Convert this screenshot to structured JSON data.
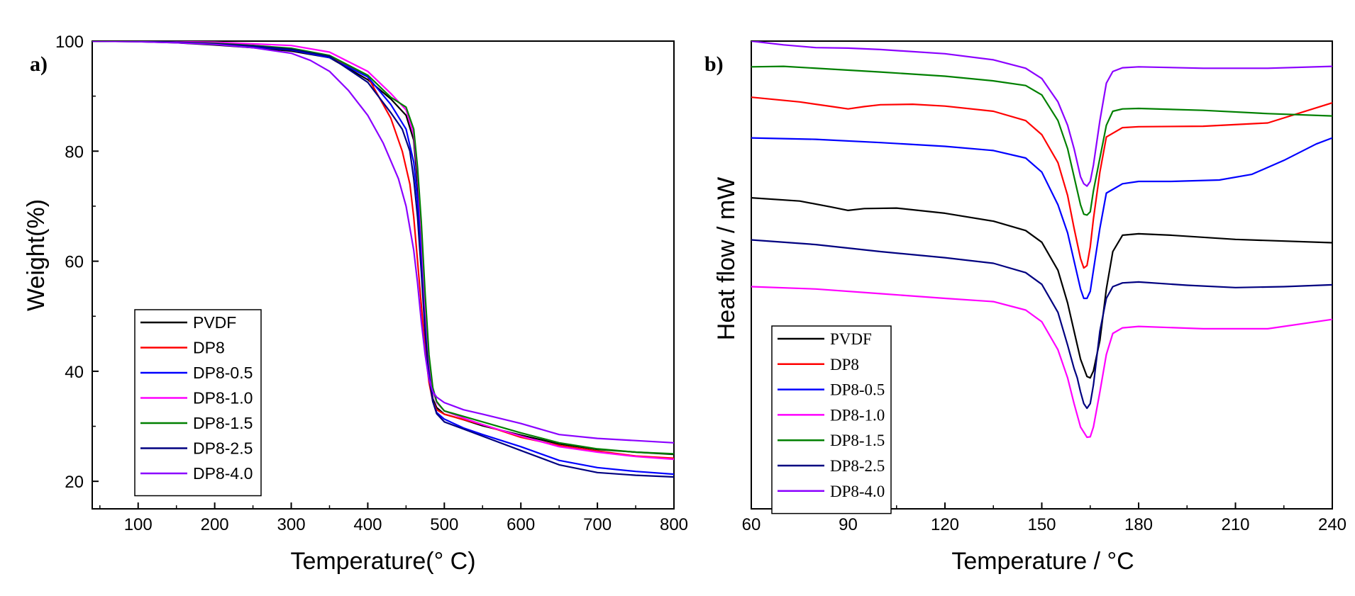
{
  "chart_data": [
    {
      "panel_label": "a)",
      "type": "line",
      "xlabel": "Temperature(° C)",
      "ylabel": "Weight(%)",
      "xlim": [
        40,
        800
      ],
      "ylim": [
        15,
        100
      ],
      "xticks": [
        100,
        200,
        300,
        400,
        500,
        600,
        700,
        800
      ],
      "yticks": [
        20,
        40,
        60,
        80,
        100
      ],
      "legend_position": "bottom-left",
      "series": [
        {
          "name": "PVDF",
          "color": "#000000",
          "x": [
            40,
            100,
            150,
            200,
            250,
            300,
            350,
            400,
            430,
            450,
            460,
            465,
            470,
            475,
            480,
            485,
            490,
            500,
            525,
            550,
            600,
            650,
            700,
            750,
            800
          ],
          "y": [
            100,
            99.9,
            99.7,
            99.3,
            98.8,
            98.2,
            97,
            93,
            89.5,
            86.5,
            82,
            74,
            63,
            50,
            40,
            35,
            33.4,
            32.2,
            31.2,
            30.1,
            28.4,
            26.8,
            25.8,
            25.3,
            24.9
          ]
        },
        {
          "name": "DP8",
          "color": "#ff0000",
          "x": [
            40,
            100,
            150,
            200,
            250,
            300,
            350,
            400,
            430,
            445,
            455,
            460,
            465,
            470,
            475,
            480,
            485,
            490,
            500,
            525,
            550,
            600,
            650,
            700,
            750,
            800
          ],
          "y": [
            100,
            99.95,
            99.8,
            99.6,
            99.2,
            98.6,
            97.2,
            93.5,
            86,
            80,
            74,
            68,
            60,
            52,
            44,
            38,
            34.5,
            33,
            32.2,
            31.2,
            30.3,
            28,
            26.5,
            25.5,
            24.6,
            24.2
          ]
        },
        {
          "name": "DP8-0.5",
          "color": "#0000ff",
          "x": [
            40,
            100,
            150,
            200,
            250,
            300,
            350,
            400,
            430,
            450,
            460,
            465,
            470,
            475,
            480,
            485,
            490,
            500,
            525,
            550,
            600,
            650,
            700,
            750,
            800
          ],
          "y": [
            100,
            99.95,
            99.8,
            99.5,
            99,
            98.4,
            97,
            93.5,
            88.5,
            84,
            78,
            71,
            61,
            50,
            40,
            34.5,
            32.5,
            31.3,
            29.7,
            28.5,
            26.3,
            23.8,
            22.5,
            21.8,
            21.3
          ]
        },
        {
          "name": "DP8-1.0",
          "color": "#ff00ff",
          "x": [
            40,
            100,
            150,
            200,
            250,
            300,
            350,
            400,
            430,
            450,
            460,
            465,
            470,
            475,
            480,
            485,
            490,
            500,
            525,
            550,
            600,
            650,
            700,
            750,
            800
          ],
          "y": [
            100,
            100,
            99.9,
            99.8,
            99.5,
            99.2,
            98,
            94.5,
            90.5,
            87.5,
            83,
            76,
            65,
            52,
            42,
            36.5,
            34.3,
            32.8,
            31.5,
            30.3,
            28.2,
            26.3,
            25.3,
            24.5,
            24
          ]
        },
        {
          "name": "DP8-1.5",
          "color": "#008000",
          "x": [
            40,
            100,
            150,
            200,
            250,
            300,
            350,
            400,
            430,
            450,
            460,
            465,
            470,
            475,
            480,
            485,
            490,
            500,
            525,
            550,
            600,
            650,
            700,
            750,
            800
          ],
          "y": [
            100,
            99.95,
            99.8,
            99.6,
            99.2,
            98.7,
            97.4,
            93.8,
            89.8,
            88,
            84,
            77,
            67,
            54,
            43,
            37,
            34.5,
            32.8,
            31.8,
            30.8,
            28.8,
            27,
            25.9,
            25.3,
            25
          ]
        },
        {
          "name": "DP8-2.5",
          "color": "#000080",
          "x": [
            40,
            100,
            150,
            200,
            250,
            300,
            350,
            400,
            430,
            445,
            455,
            460,
            465,
            470,
            475,
            480,
            485,
            490,
            500,
            525,
            550,
            600,
            650,
            700,
            750,
            800
          ],
          "y": [
            100,
            99.95,
            99.8,
            99.5,
            99.1,
            98.5,
            97.2,
            92.5,
            87,
            84,
            80,
            75,
            68,
            58,
            47,
            39,
            34.5,
            32.3,
            30.8,
            29.5,
            28.2,
            25.6,
            23,
            21.6,
            21.1,
            20.8
          ]
        },
        {
          "name": "DP8-4.0",
          "color": "#8b00ff",
          "x": [
            40,
            100,
            150,
            200,
            250,
            300,
            325,
            350,
            375,
            400,
            420,
            440,
            450,
            460,
            465,
            470,
            475,
            480,
            485,
            490,
            500,
            525,
            550,
            600,
            650,
            700,
            750,
            800
          ],
          "y": [
            100,
            99.9,
            99.7,
            99.4,
            98.8,
            97.8,
            96.5,
            94.5,
            91,
            86.5,
            81.5,
            75,
            70,
            62,
            56,
            49,
            43,
            38.5,
            36.3,
            35.3,
            34.3,
            33,
            32.2,
            30.5,
            28.5,
            27.8,
            27.4,
            27
          ]
        }
      ]
    },
    {
      "panel_label": "b)",
      "type": "line",
      "xlabel": "Temperature / °C",
      "ylabel": "Heat flow / mW",
      "xlim": [
        60,
        240
      ],
      "ylim": [
        0,
        100
      ],
      "xticks": [
        60,
        90,
        120,
        150,
        180,
        210,
        240
      ],
      "legend_position": "bottom-left",
      "series": [
        {
          "name": "PVDF",
          "color": "#000000",
          "x": [
            60,
            75,
            85,
            90,
            95,
            105,
            120,
            135,
            145,
            150,
            155,
            158,
            160,
            162,
            164,
            165,
            166,
            168,
            170,
            172,
            175,
            180,
            190,
            210,
            240
          ],
          "y": [
            66.5,
            65.8,
            64.5,
            63.8,
            64.2,
            64.3,
            63.2,
            61.5,
            59.5,
            57,
            51,
            44,
            38,
            32,
            28.3,
            28,
            29.5,
            36,
            47,
            55,
            58.5,
            58.8,
            58.5,
            57.6,
            56.9
          ]
        },
        {
          "name": "DP8",
          "color": "#ff0000",
          "x": [
            60,
            75,
            85,
            90,
            95,
            100,
            110,
            120,
            135,
            145,
            150,
            155,
            158,
            160,
            162,
            163,
            164,
            165,
            166,
            168,
            170,
            175,
            180,
            200,
            220,
            240
          ],
          "y": [
            88,
            87,
            86,
            85.5,
            86,
            86.4,
            86.5,
            86.1,
            85,
            83,
            80,
            74,
            67,
            60,
            53.5,
            51.5,
            52,
            56,
            62,
            72,
            79.5,
            81.5,
            81.7,
            81.8,
            82.5,
            86.8
          ]
        },
        {
          "name": "DP8-0.5",
          "color": "#0000ff",
          "x": [
            60,
            80,
            100,
            120,
            135,
            145,
            150,
            155,
            158,
            160,
            162,
            163,
            164,
            165,
            166,
            168,
            170,
            175,
            180,
            190,
            205,
            215,
            225,
            235,
            240
          ],
          "y": [
            79.3,
            79,
            78.3,
            77.5,
            76.6,
            75,
            72,
            65,
            59,
            53,
            47,
            45,
            45,
            46.5,
            51,
            60,
            67.5,
            69.5,
            70,
            70,
            70.3,
            71.5,
            74.5,
            78,
            79.3
          ]
        },
        {
          "name": "DP8-1.0",
          "color": "#ff00ff",
          "x": [
            60,
            80,
            100,
            120,
            135,
            145,
            150,
            155,
            158,
            160,
            162,
            164,
            165,
            166,
            168,
            170,
            172,
            175,
            180,
            200,
            220,
            240
          ],
          "y": [
            47.5,
            47,
            46,
            45,
            44.3,
            42.5,
            40,
            34,
            28,
            22.5,
            17.5,
            15.3,
            15.4,
            17.5,
            25,
            33,
            37.5,
            38.7,
            39,
            38.5,
            38.5,
            40.5
          ]
        },
        {
          "name": "DP8-1.5",
          "color": "#008000",
          "x": [
            60,
            70,
            100,
            120,
            135,
            145,
            150,
            155,
            158,
            160,
            162,
            163,
            164,
            165,
            166,
            168,
            170,
            172,
            175,
            180,
            200,
            220,
            240
          ],
          "y": [
            94.5,
            94.6,
            93.4,
            92.5,
            91.5,
            90.5,
            88.5,
            83,
            77,
            71,
            65,
            63,
            62.8,
            63.5,
            68,
            75,
            82,
            85,
            85.5,
            85.6,
            85.2,
            84.5,
            84
          ]
        },
        {
          "name": "DP8-2.5",
          "color": "#000080",
          "x": [
            60,
            80,
            100,
            120,
            135,
            145,
            150,
            155,
            158,
            160,
            161,
            162,
            163,
            164,
            165,
            166,
            168,
            170,
            172,
            175,
            180,
            195,
            210,
            225,
            240
          ],
          "y": [
            57.5,
            56.5,
            55,
            53.7,
            52.5,
            50.5,
            48,
            42,
            35,
            30,
            28,
            25,
            22.5,
            21.5,
            22.5,
            26.5,
            38,
            45,
            47.5,
            48.3,
            48.5,
            47.8,
            47.3,
            47.5,
            47.9
          ]
        },
        {
          "name": "DP8-4.0",
          "color": "#8b00ff",
          "x": [
            60,
            70,
            80,
            90,
            100,
            120,
            135,
            145,
            150,
            155,
            158,
            160,
            162,
            163,
            164,
            165,
            166,
            168,
            170,
            172,
            175,
            180,
            200,
            220,
            240
          ],
          "y": [
            100,
            99.2,
            98.6,
            98.5,
            98.2,
            97.3,
            96,
            94.2,
            92,
            87,
            82,
            77,
            71,
            69.5,
            69,
            70,
            73.5,
            83,
            91,
            93.5,
            94.3,
            94.5,
            94.2,
            94.2,
            94.6
          ]
        }
      ]
    }
  ]
}
